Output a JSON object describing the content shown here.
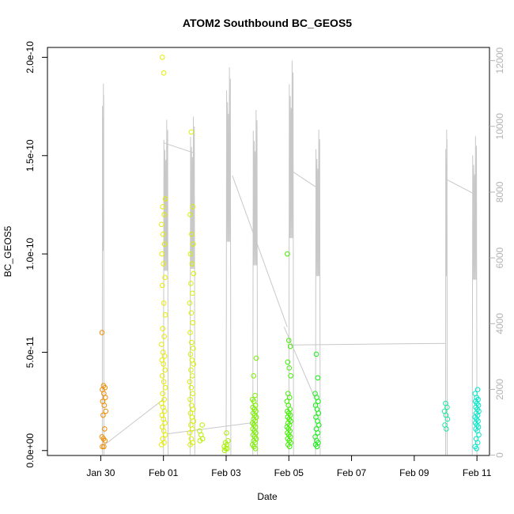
{
  "chart_data": {
    "type": "scatter",
    "title": "ATOM2 Southbound BC_GEOS5",
    "xlabel": "Date",
    "ylabel": "BC_GEOS5",
    "x_range_days": [
      28.3,
      42.4
    ],
    "ylim": [
      -2.5e-12,
      2.05e-10
    ],
    "y2lim": [
      -10,
      12400
    ],
    "x_ticks": [
      {
        "value": 30,
        "label": "Jan 30"
      },
      {
        "value": 32,
        "label": "Feb 01"
      },
      {
        "value": 34,
        "label": "Feb 03"
      },
      {
        "value": 36,
        "label": "Feb 05"
      },
      {
        "value": 38,
        "label": "Feb 07"
      },
      {
        "value": 40,
        "label": "Feb 09"
      },
      {
        "value": 42,
        "label": "Feb 11"
      }
    ],
    "y_ticks": [
      {
        "value": 0,
        "label": "0.0e+00"
      },
      {
        "value": 5e-11,
        "label": "5.0e-11"
      },
      {
        "value": 1e-10,
        "label": "1.0e-10"
      },
      {
        "value": 1.5e-10,
        "label": "1.5e-10"
      },
      {
        "value": 2e-10,
        "label": "2.0e-10"
      }
    ],
    "y2_ticks": [
      {
        "value": 0,
        "label": "0"
      },
      {
        "value": 2000,
        "label": "2000"
      },
      {
        "value": 4000,
        "label": "4000"
      },
      {
        "value": 6000,
        "label": "6000"
      },
      {
        "value": 8000,
        "label": "8000"
      },
      {
        "value": 10000,
        "label": "10000"
      },
      {
        "value": 12000,
        "label": "12000"
      }
    ],
    "altitude_line_color": "#c8c8c8",
    "flights": [
      {
        "x": 30.1,
        "color": "#f08c00",
        "values": [
          6e-11,
          3.3e-11,
          3.2e-11,
          3.1e-11,
          2.9e-11,
          2.7e-11,
          2.5e-11,
          2.3e-11,
          2e-11,
          1.8e-11,
          1.1e-11,
          7e-12,
          6e-12,
          5e-12,
          2e-12,
          2e-12
        ]
      },
      {
        "x": 32.0,
        "color": "#e6ec00",
        "values": [
          2e-10,
          1.92e-10,
          1.28e-10,
          1.24e-10,
          1.2e-10,
          1.15e-10,
          1.1e-10,
          1.05e-10,
          1e-10,
          9.5e-11,
          8.8e-11,
          8.4e-11,
          7.5e-11,
          6.9e-11,
          6.2e-11,
          5.8e-11,
          5.4e-11,
          5e-11,
          4.8e-11,
          4.6e-11,
          4.4e-11,
          4.1e-11,
          3.8e-11,
          3.5e-11,
          3.2e-11,
          2.9e-11,
          2.6e-11,
          2.4e-11,
          2.2e-11,
          2e-11,
          1.8e-11,
          1.6e-11,
          1.4e-11,
          1.2e-11,
          1e-11,
          8e-12,
          6e-12,
          4e-12,
          3e-12
        ]
      },
      {
        "x": 32.9,
        "color": "#d8f000",
        "values": [
          1.62e-10,
          1.24e-10,
          1.2e-10,
          1.1e-10,
          1.05e-10,
          1e-10,
          9.5e-11,
          9e-11,
          8.5e-11,
          8e-11,
          7.5e-11,
          7e-11,
          6.5e-11,
          6e-11,
          5.5e-11,
          5.2e-11,
          4.9e-11,
          4.6e-11,
          4.4e-11,
          4.1e-11,
          3.8e-11,
          3.5e-11,
          3.2e-11,
          2.9e-11,
          2.6e-11,
          2.3e-11,
          2.1e-11,
          1.9e-11,
          1.7e-11,
          1.5e-11,
          1.3e-11,
          1.1e-11,
          9e-12,
          6e-12,
          4e-12,
          3e-12
        ]
      },
      {
        "x": 34.0,
        "color": "#a8f000",
        "values": [
          9e-12,
          5e-12,
          4e-12,
          3e-12,
          2e-12,
          1e-12,
          1e-12,
          0
        ]
      },
      {
        "x": 33.2,
        "color": "#b8f000",
        "values": [
          1.3e-11,
          1e-11,
          8e-12,
          6e-12,
          5e-12
        ]
      },
      {
        "x": 34.9,
        "color": "#7cf000",
        "values": [
          4.7e-11,
          3.8e-11,
          2.8e-11,
          2.6e-11,
          2.5e-11,
          2.3e-11,
          2.2e-11,
          2.1e-11,
          2e-11,
          1.9e-11,
          1.8e-11,
          1.7e-11,
          1.6e-11,
          1.5e-11,
          1.4e-11,
          1.3e-11,
          1.2e-11,
          1.1e-11,
          1e-11,
          9e-12,
          8e-12,
          7e-12,
          6e-12,
          5e-12,
          4e-12,
          3e-12,
          2e-12,
          1e-12
        ]
      },
      {
        "x": 36.0,
        "color": "#40f000",
        "values": [
          1e-10,
          5.6e-11,
          5.3e-11,
          4.5e-11,
          4.2e-11,
          3.8e-11,
          2.9e-11,
          2.7e-11,
          2.5e-11,
          2.3e-11,
          2.1e-11,
          2e-11,
          1.9e-11,
          1.8e-11,
          1.7e-11,
          1.6e-11,
          1.5e-11,
          1.4e-11,
          1.3e-11,
          1.2e-11,
          1.1e-11,
          1e-11,
          9e-12,
          8e-12,
          7e-12,
          6e-12,
          5e-12,
          4e-12,
          3e-12,
          2e-12
        ]
      },
      {
        "x": 36.9,
        "color": "#10f010",
        "values": [
          4.9e-11,
          3.7e-11,
          2.9e-11,
          2.7e-11,
          2.5e-11,
          2.3e-11,
          2.1e-11,
          1.9e-11,
          1.7e-11,
          1.5e-11,
          1.3e-11,
          1.1e-11,
          9e-12,
          7e-12,
          5e-12,
          4e-12,
          3e-12,
          2e-12
        ]
      },
      {
        "x": 41.0,
        "color": "#20e8a0",
        "values": [
          2.4e-11,
          2.2e-11,
          2e-11,
          1.8e-11,
          1.6e-11,
          1.3e-11,
          1.1e-11
        ]
      },
      {
        "x": 42.0,
        "color": "#00e8c8",
        "values": [
          3.1e-11,
          2.9e-11,
          2.7e-11,
          2.6e-11,
          2.5e-11,
          2.4e-11,
          2.3e-11,
          2.2e-11,
          2.1e-11,
          2e-11,
          1.9e-11,
          1.8e-11,
          1.7e-11,
          1.6e-11,
          1.5e-11,
          1.4e-11,
          1.3e-11,
          1.2e-11,
          1.1e-11,
          1e-11,
          8e-12,
          6e-12,
          4e-12,
          2e-12,
          1e-12
        ]
      }
    ],
    "altitude_profiles": [
      {
        "start": 30.05,
        "end": 30.1,
        "max": 11300
      },
      {
        "start": 32.0,
        "end": 32.15,
        "max": 10200
      },
      {
        "start": 32.85,
        "end": 33.0,
        "max": 10300
      },
      {
        "start": 34.0,
        "end": 34.15,
        "max": 11800
      },
      {
        "start": 34.85,
        "end": 35.0,
        "max": 10500
      },
      {
        "start": 36.0,
        "end": 36.15,
        "max": 12000
      },
      {
        "start": 36.85,
        "end": 37.0,
        "max": 9900
      },
      {
        "start": 41.0,
        "end": 41.05,
        "max": 9900
      },
      {
        "start": 41.85,
        "end": 42.0,
        "max": 9700
      }
    ],
    "altitude_connectors": [
      {
        "x1": 30.1,
        "y1": 300,
        "x2": 32.0,
        "y2": 1700
      },
      {
        "x1": 32.15,
        "y1": 650,
        "x2": 34.95,
        "y2": 1000
      },
      {
        "x1": 32.0,
        "y1": 9500,
        "x2": 32.95,
        "y2": 9200
      },
      {
        "x1": 34.2,
        "y1": 8500,
        "x2": 35.95,
        "y2": 3900
      },
      {
        "x1": 36.0,
        "y1": 8700,
        "x2": 36.95,
        "y2": 8100
      },
      {
        "x1": 36.05,
        "y1": 3350,
        "x2": 41.0,
        "y2": 3400
      },
      {
        "x1": 41.0,
        "y1": 8400,
        "x2": 42.0,
        "y2": 7900
      },
      {
        "x1": 35.85,
        "y1": 3900,
        "x2": 36.8,
        "y2": 1800
      }
    ]
  }
}
